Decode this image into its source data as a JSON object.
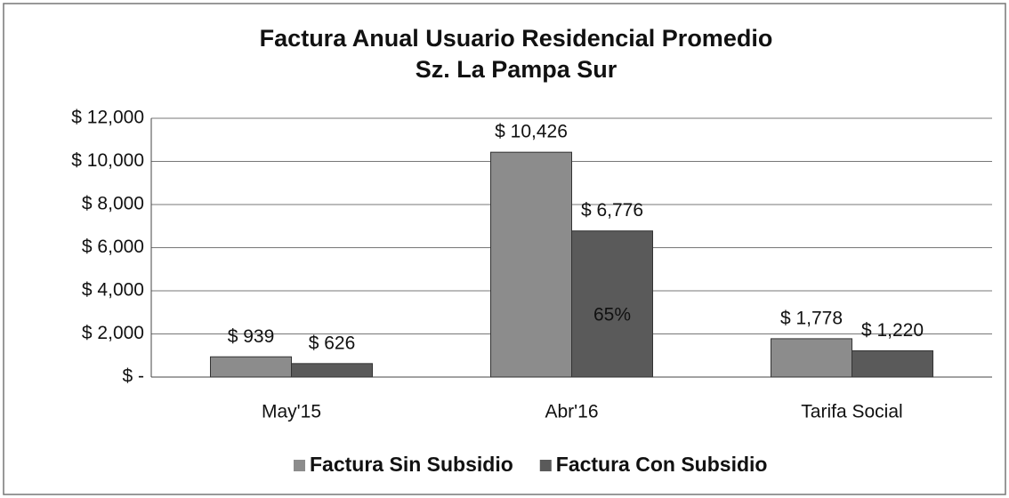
{
  "chart_data": {
    "type": "bar",
    "title": "Factura Anual Usuario Residencial Promedio",
    "subtitle": "Sz. La  Pampa Sur",
    "categories": [
      "May'15",
      "Abr'16",
      "Tarifa Social"
    ],
    "series": [
      {
        "name": "Factura Sin Subsidio",
        "color": "#8c8c8c",
        "values": [
          939,
          10426,
          1778
        ],
        "value_labels": [
          "$ 939",
          "$ 10,426",
          "$ 1,778"
        ]
      },
      {
        "name": "Factura Con Subsidio",
        "color": "#5a5a5a",
        "values": [
          626,
          6776,
          1220
        ],
        "value_labels": [
          "$ 626",
          "$ 6,776",
          "$ 1,220"
        ]
      }
    ],
    "annotations": [
      "65%"
    ],
    "ylim": [
      0,
      12000
    ],
    "yticks": [
      {
        "value": 0,
        "label": "$ -"
      },
      {
        "value": 2000,
        "label": "$ 2,000"
      },
      {
        "value": 4000,
        "label": "$ 4,000"
      },
      {
        "value": 6000,
        "label": "$ 6,000"
      },
      {
        "value": 8000,
        "label": "$ 8,000"
      },
      {
        "value": 10000,
        "label": "$ 10,000"
      },
      {
        "value": 12000,
        "label": "$ 12,000"
      }
    ],
    "grid": true,
    "legend": "bottom"
  }
}
